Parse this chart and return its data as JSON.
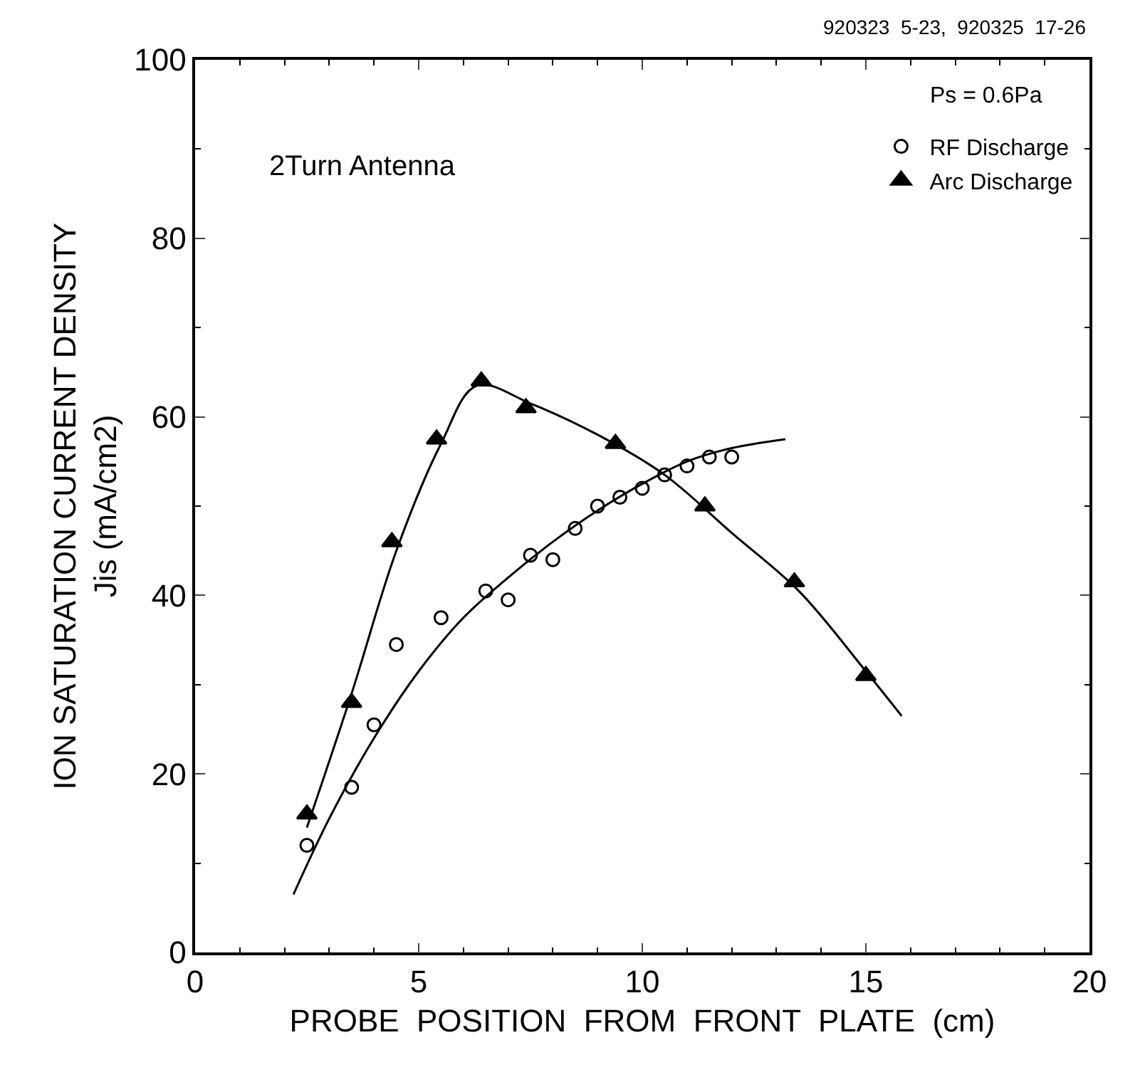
{
  "chart_data": {
    "type": "scatter",
    "xlabel": "PROBE  POSITION  FROM  FRONT  PLATE  (cm)",
    "ylabel": "ION SATURATION CURRENT DENSITY\nJis (mA/cm2)",
    "annotations": [
      "920323  5-23,  920325  17-26",
      "2Turn Antenna",
      "Ps = 0.6Pa"
    ],
    "xlim": [
      0,
      20
    ],
    "xticks": [
      0,
      5,
      10,
      15,
      20
    ],
    "ylim": [
      0,
      100
    ],
    "yticks": [
      0,
      20,
      40,
      60,
      80,
      100
    ],
    "legend": "top right",
    "series": [
      {
        "name": "RF Discharge",
        "color": "#000000",
        "marker": "circle",
        "x": [
          2.5,
          3.5,
          4.0,
          4.5,
          5.5,
          6.5,
          7.0,
          7.5,
          8.0,
          8.5,
          9.0,
          9.5,
          10.0,
          10.5,
          11.0,
          11.5,
          12.0
        ],
        "values": [
          12,
          18.5,
          25.5,
          34.5,
          37.5,
          40.5,
          39.5,
          44.5,
          44,
          47.5,
          50,
          51,
          52,
          53.5,
          54.5,
          55.5,
          55.5
        ]
      },
      {
        "name": "Arc Discharge",
        "color": "#000000",
        "marker": "triangle",
        "x": [
          2.5,
          3.5,
          4.4,
          5.4,
          6.4,
          7.4,
          9.4,
          11.4,
          13.4,
          15.0
        ],
        "values": [
          15.5,
          28,
          46,
          57.5,
          64,
          61,
          57,
          50,
          41.5,
          31
        ]
      },
      {
        "type": "line",
        "color": "#000000",
        "marker": "none",
        "x": [
          2.2,
          3,
          4,
          5,
          6,
          7,
          8,
          9,
          10,
          11,
          12,
          13.2
        ],
        "values": [
          6.5,
          15,
          24,
          31.5,
          37.5,
          42,
          46,
          49.5,
          52.5,
          55,
          56.5,
          57.5
        ]
      },
      {
        "type": "line",
        "color": "#000000",
        "marker": "none",
        "x": [
          2.5,
          3.5,
          4.5,
          5.5,
          6.3,
          7.5,
          9,
          10.5,
          12,
          13.5,
          15,
          15.8
        ],
        "values": [
          14,
          29,
          45,
          57,
          63.5,
          61.5,
          58,
          53.5,
          47,
          40.5,
          31.5,
          26.5
        ]
      }
    ]
  }
}
